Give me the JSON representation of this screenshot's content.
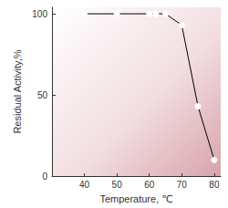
{
  "chart_data": {
    "type": "line",
    "x_label": "Temperature, ℃",
    "y_label": "Residual Activity,%",
    "x": [
      40,
      50,
      60,
      62,
      65,
      70,
      75,
      80
    ],
    "values": [
      100,
      100,
      100,
      100,
      100,
      93,
      43,
      10
    ],
    "color": "#000000",
    "marker": "open_circle",
    "xlim": [
      30,
      82
    ],
    "xticks": [
      40,
      50,
      60,
      70,
      80
    ],
    "ylim": [
      0,
      104
    ],
    "yticks": [
      0,
      50,
      100
    ],
    "grid": false
  }
}
